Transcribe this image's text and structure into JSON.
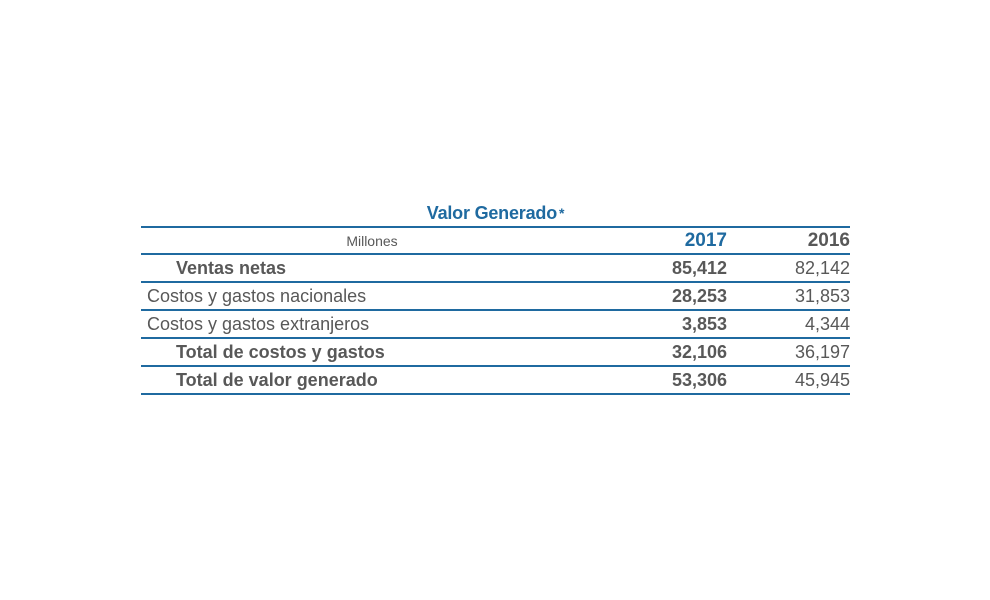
{
  "title": "Valor Generado",
  "title_mark": "*",
  "header": {
    "units": "Millones",
    "col1": "2017",
    "col2": "2016"
  },
  "rows": [
    {
      "label": "Ventas netas",
      "v2017": "85,412",
      "v2016": "82,142"
    },
    {
      "label": "Costos y gastos nacionales",
      "v2017": "28,253",
      "v2016": "31,853"
    },
    {
      "label": "Costos y gastos extranjeros",
      "v2017": "3,853",
      "v2016": "4,344"
    },
    {
      "label": "Total de costos y gastos",
      "v2017": "32,106",
      "v2016": "36,197"
    },
    {
      "label": "Total de valor generado",
      "v2017": "53,306",
      "v2016": "45,945"
    }
  ],
  "colors": {
    "accent": "#1f6aa0",
    "text": "#585858"
  }
}
